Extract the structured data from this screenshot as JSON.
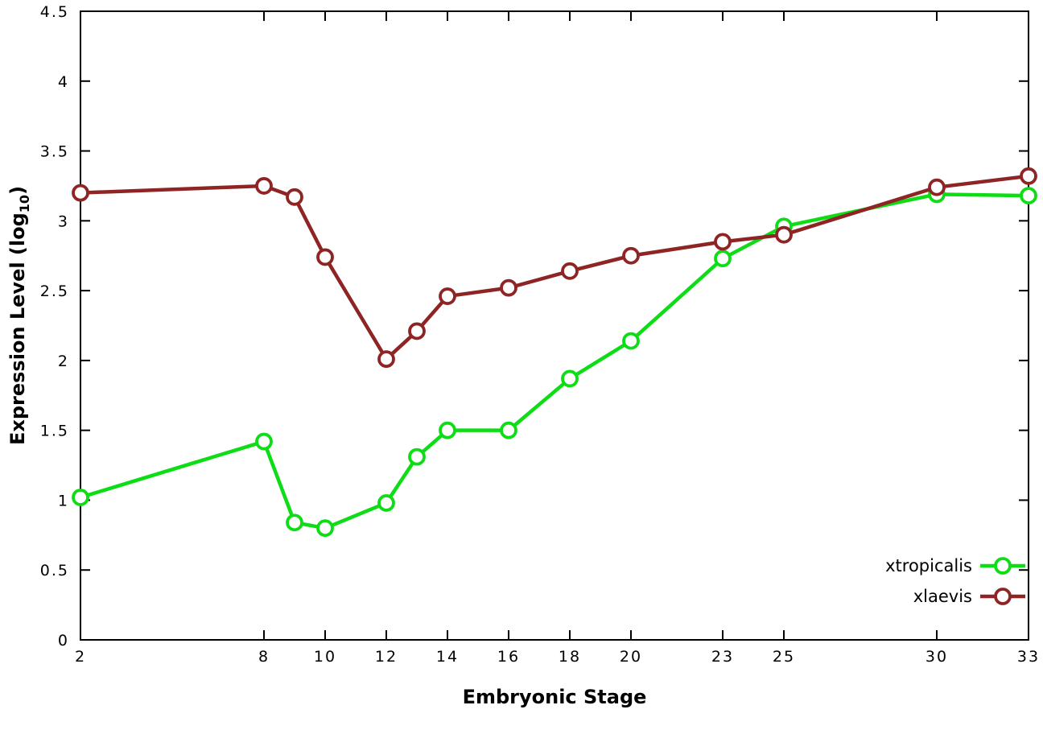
{
  "chart_data": {
    "type": "line",
    "x": [
      2,
      8,
      9,
      10,
      12,
      13,
      14,
      16,
      18,
      20,
      23,
      25,
      30,
      33
    ],
    "series": [
      {
        "name": "xtropicalis",
        "color": "#0ddd15",
        "values": [
          1.02,
          1.42,
          0.84,
          0.8,
          0.98,
          1.31,
          1.5,
          1.5,
          1.87,
          2.14,
          2.73,
          2.96,
          3.19,
          3.18
        ]
      },
      {
        "name": "xlaevis",
        "color": "#8e2424",
        "values": [
          3.2,
          3.25,
          3.17,
          2.74,
          2.01,
          2.21,
          2.46,
          2.52,
          2.64,
          2.75,
          2.85,
          2.9,
          3.24,
          3.32
        ]
      }
    ],
    "xlabel": "Embryonic Stage",
    "ylabel_text": "Expression Level (log",
    "ylabel_sub": "10",
    "ylabel_close": ")",
    "xlim": [
      2,
      33
    ],
    "ylim": [
      0,
      4.5
    ],
    "xticks": [
      2,
      8,
      10,
      12,
      14,
      16,
      18,
      20,
      23,
      25,
      30,
      33
    ],
    "ytick_step": 0.5,
    "grid": false,
    "legend_position": "bottom-right",
    "axis_color": "#000000",
    "background_color": "#ffffff"
  }
}
